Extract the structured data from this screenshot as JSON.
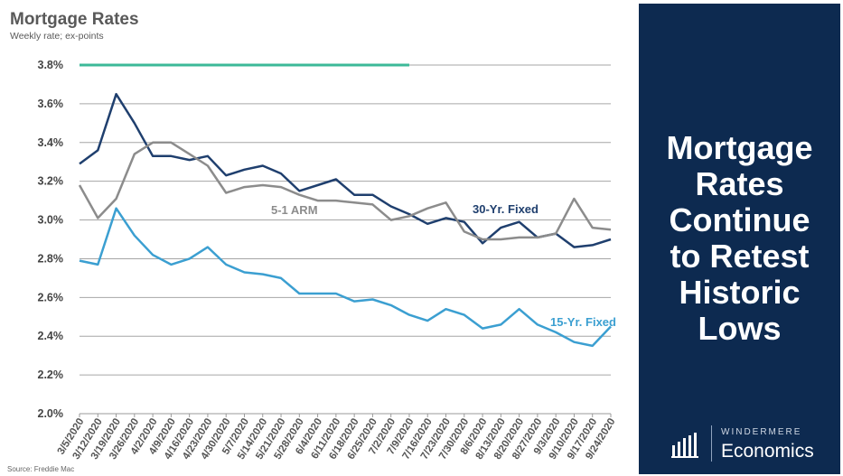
{
  "chart_data": {
    "type": "line",
    "title": "Mortgage Rates",
    "subtitle": "Weekly rate; ex-points",
    "source": "Source: Freddie Mac",
    "ylim": [
      2.0,
      3.8
    ],
    "yticks": [
      "2.0%",
      "2.2%",
      "2.4%",
      "2.6%",
      "2.8%",
      "3.0%",
      "3.2%",
      "3.4%",
      "3.6%",
      "3.8%"
    ],
    "grid": true,
    "x": [
      "3/5/2020",
      "3/12/2020",
      "3/19/2020",
      "3/26/2020",
      "4/2/2020",
      "4/9/2020",
      "4/16/2020",
      "4/23/2020",
      "4/30/2020",
      "5/7/2020",
      "5/14/2020",
      "5/21/2020",
      "5/28/2020",
      "6/4/2020",
      "6/11/2020",
      "6/18/2020",
      "6/25/2020",
      "7/2/2020",
      "7/9/2020",
      "7/16/2020",
      "7/23/2020",
      "7/30/2020",
      "8/6/2020",
      "8/13/2020",
      "8/20/2020",
      "8/27/2020",
      "9/3/2020",
      "9/10/2020",
      "9/17/2020",
      "9/24/2020"
    ],
    "series": [
      {
        "name": "30-Yr. Fixed",
        "color": "#1f3f6e",
        "values": [
          3.29,
          3.36,
          3.65,
          3.5,
          3.33,
          3.33,
          3.31,
          3.33,
          3.23,
          3.26,
          3.28,
          3.24,
          3.15,
          3.18,
          3.21,
          3.13,
          3.13,
          3.07,
          3.03,
          2.98,
          3.01,
          2.99,
          2.88,
          2.96,
          2.99,
          2.91,
          2.93,
          2.86,
          2.87,
          2.9
        ]
      },
      {
        "name": "5-1 ARM",
        "color": "#8c8c8c",
        "values": [
          3.18,
          3.01,
          3.11,
          3.34,
          3.4,
          3.4,
          3.34,
          3.28,
          3.14,
          3.17,
          3.18,
          3.17,
          3.13,
          3.1,
          3.1,
          3.09,
          3.08,
          3.0,
          3.02,
          3.06,
          3.09,
          2.94,
          2.9,
          2.9,
          2.91,
          2.91,
          2.93,
          3.11,
          2.96,
          2.95
        ]
      },
      {
        "name": "15-Yr. Fixed",
        "color": "#3b9fd1",
        "values": [
          2.79,
          2.77,
          3.06,
          2.92,
          2.82,
          2.77,
          2.8,
          2.86,
          2.77,
          2.73,
          2.72,
          2.7,
          2.62,
          2.62,
          2.62,
          2.58,
          2.59,
          2.56,
          2.51,
          2.48,
          2.54,
          2.51,
          2.44,
          2.46,
          2.54,
          2.46,
          2.42,
          2.37,
          2.35,
          2.45
        ]
      }
    ],
    "reference_line": {
      "color": "#3cb998",
      "value": 3.8,
      "from_index": 0,
      "to_index": 18
    }
  },
  "panel": {
    "headline": "Mortgage\nRates\nContinue\nto Retest\nHistoric\nLows",
    "brand_top": "WINDERMERE",
    "brand_bottom": "Economics",
    "bg_color": "#0d2a50"
  }
}
